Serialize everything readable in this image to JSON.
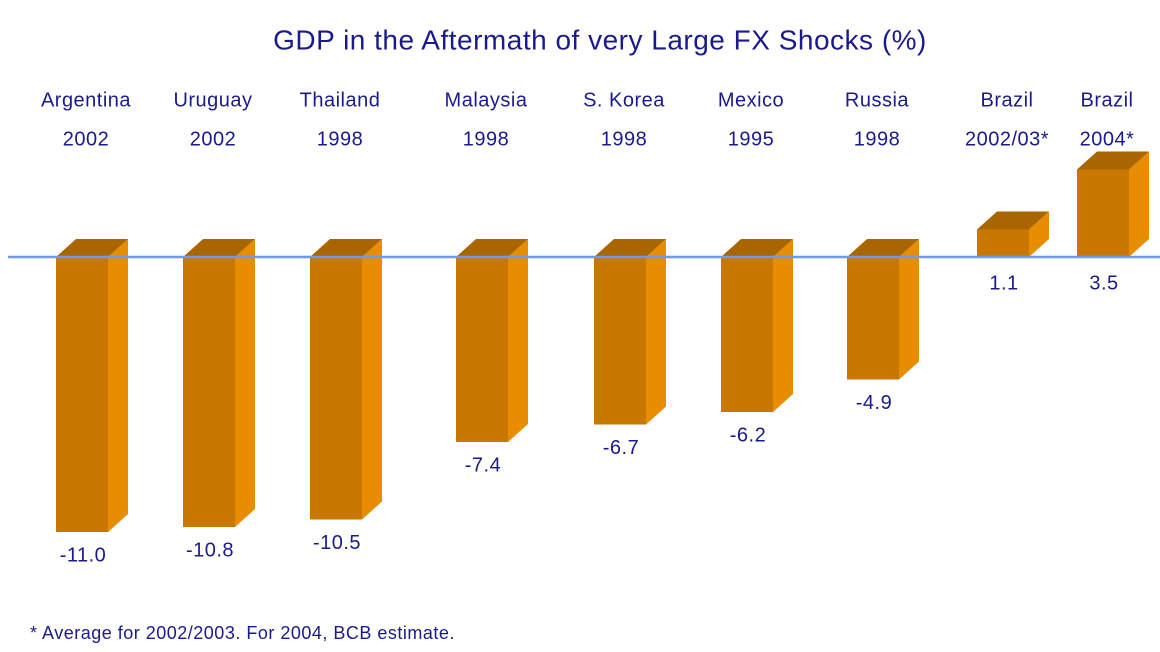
{
  "chart_data": {
    "type": "bar3d",
    "title": "GDP in the Aftermath of very Large FX Shocks (%)",
    "categories": [
      [
        "Argentina",
        "2002"
      ],
      [
        "Uruguay",
        "2002"
      ],
      [
        "Thailand",
        "1998"
      ],
      [
        "Malaysia",
        "1998"
      ],
      [
        "S. Korea",
        "1998"
      ],
      [
        "Mexico",
        "1995"
      ],
      [
        "Russia",
        "1998"
      ],
      [
        "Brazil",
        "2002/03*"
      ],
      [
        "Brazil",
        "2004*"
      ]
    ],
    "values": [
      -11,
      -10.8,
      -10.5,
      -7.4,
      -6.7,
      -6.2,
      -4.9,
      1.1,
      3.5
    ],
    "value_labels": [
      "-11.0",
      "-10.8",
      "-10.5",
      "-7.4",
      "-6.7",
      "-6.2",
      "-4.9",
      "1.1",
      "3.5"
    ],
    "colors": {
      "front": "#c87700",
      "top": "#a86500",
      "side": "#e88c00",
      "baseline": "#6f9ae6"
    },
    "footnote": "* Average for 2002/2003. For 2004, BCB estimate."
  }
}
